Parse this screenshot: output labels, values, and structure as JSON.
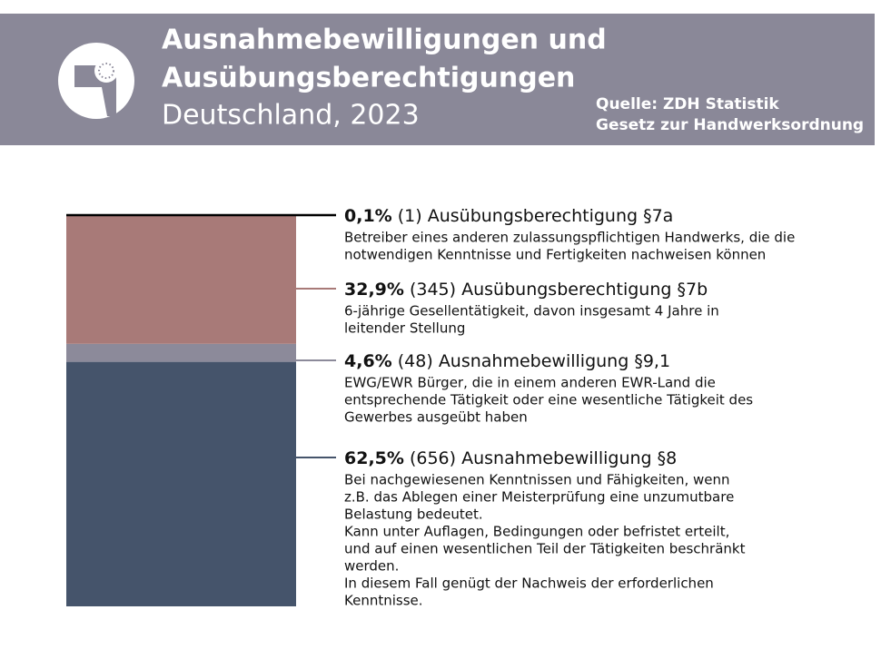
{
  "chart_data": {
    "type": "stacked-bar",
    "title_lines": [
      "Ausnahmebewilligungen und",
      "Ausübungsberechtigungen"
    ],
    "subtitle": "Deutschland, 2023",
    "source_lines": [
      "Quelle: ZDH Statistik",
      "Gesetz zur Handwerksordnung"
    ],
    "series": [
      {
        "name": "Ausübungsberechtigung §7a",
        "color": "#000000",
        "values": [
          0.1
        ],
        "value_labels": [
          "0,1%"
        ],
        "count_label": "(1)",
        "description": [
          "Betreiber eines anderen zulassungspflichtigen Handwerks, die die",
          "notwendigen Kenntnisse und Fertigkeiten nachweisen können"
        ]
      },
      {
        "name": "Ausübungsberechtigung §7b",
        "color": "#a87a78",
        "values": [
          32.9
        ],
        "value_labels": [
          "32,9%"
        ],
        "count_label": "(345)",
        "description": [
          "6-jährige Gesellentätigkeit, davon insgesamt 4 Jahre in",
          "leitender Stellung"
        ]
      },
      {
        "name": "Ausnahmebewilligung §9,1",
        "color": "#8c8a9a",
        "values": [
          4.6
        ],
        "value_labels": [
          "4,6%"
        ],
        "count_label": "(48)",
        "description": [
          "EWG/EWR Bürger, die in einem anderen EWR-Land die",
          "entsprechende Tätigkeit oder eine wesentliche Tätigkeit des",
          "Gewerbes ausgeübt haben"
        ]
      },
      {
        "name": "Ausnahmebewilligung §8",
        "color": "#45546b",
        "values": [
          62.5
        ],
        "value_labels": [
          "62,5%"
        ],
        "count_label": "(656)",
        "description": [
          "Bei nachgewiesenen Kenntnissen und Fähigkeiten, wenn",
          "z.B. das Ablegen einer Meisterprüfung eine unzumutbare",
          "Belastung bedeutet.",
          "Kann unter Auflagen, Bedingungen oder befristet erteilt,",
          "und auf einen wesentlichen Teil der Tätigkeiten beschränkt",
          "werden.",
          "In diesem Fall genügt der Nachweis der erforderlichen",
          "Kenntnisse."
        ]
      }
    ]
  }
}
